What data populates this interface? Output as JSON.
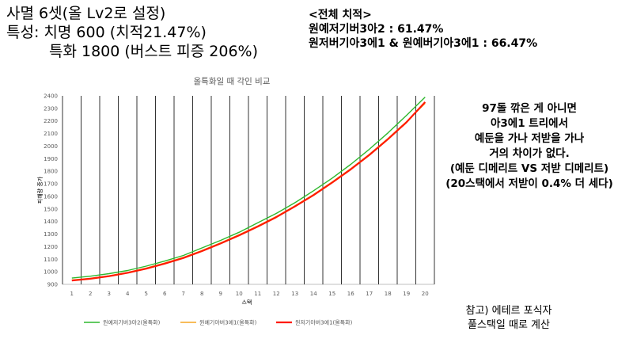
{
  "header": {
    "line1": "사멸 6셋(올 Lv2로 설정)",
    "line2": "특성: 치명 600 (치적21.47%)",
    "line3": "특화 1800 (버스트 피증 206%)"
  },
  "crit_box": {
    "title": "<전체 치적>",
    "row1": "원예저기버3아2 : 61.47%",
    "row2": "원저버기아3에1 & 원예버기아3에1 : 66.47%"
  },
  "note": {
    "lines": [
      "97돌 깎은 게 아니면",
      "아3에1 트리에서",
      "예둔을 가나 저받을 가나",
      "거의 차이가 없다.",
      "(예둔 디메리트 VS 저받 디메리트)",
      "(20스택에서 저받이 0.4% 더 세다)"
    ]
  },
  "footnote": {
    "line1": "참고) 에테르 포식자",
    "line2": "풀스택일 때로 계산"
  },
  "colors": {
    "series1": "#2eb82e",
    "series2": "#f5a623",
    "series3": "#ff1a00",
    "grid": "#000000",
    "axis_text": "#595959"
  },
  "chart_data": {
    "type": "line",
    "title": "올특화일 때 각인 비교",
    "xlabel": "스택",
    "ylabel": "피해량 증가",
    "x": [
      1,
      2,
      3,
      4,
      5,
      6,
      7,
      8,
      9,
      10,
      11,
      12,
      13,
      14,
      15,
      16,
      17,
      18,
      19,
      20
    ],
    "ylim": [
      900,
      2400
    ],
    "yticks": [
      900,
      1000,
      1100,
      1200,
      1300,
      1400,
      1500,
      1600,
      1700,
      1800,
      1900,
      2000,
      2100,
      2200,
      2300,
      2400
    ],
    "grid": "vertical",
    "legend": "bottom",
    "series": [
      {
        "name": "원예저기버3아2(올특화)",
        "values": [
          950,
          965,
          985,
          1010,
          1045,
          1085,
          1130,
          1190,
          1250,
          1315,
          1390,
          1465,
          1550,
          1645,
          1745,
          1855,
          1975,
          2105,
          2245,
          2390
        ]
      },
      {
        "name": "원예기아버3에1(올특화)",
        "values": [
          935,
          948,
          968,
          995,
          1030,
          1070,
          1115,
          1170,
          1230,
          1295,
          1365,
          1440,
          1525,
          1615,
          1715,
          1820,
          1935,
          2060,
          2195,
          2340
        ]
      },
      {
        "name": "원저기아버3에1(올특화)",
        "values": [
          930,
          945,
          965,
          992,
          1025,
          1065,
          1110,
          1165,
          1225,
          1290,
          1360,
          1435,
          1520,
          1610,
          1710,
          1815,
          1930,
          2055,
          2190,
          2350
        ]
      }
    ]
  }
}
